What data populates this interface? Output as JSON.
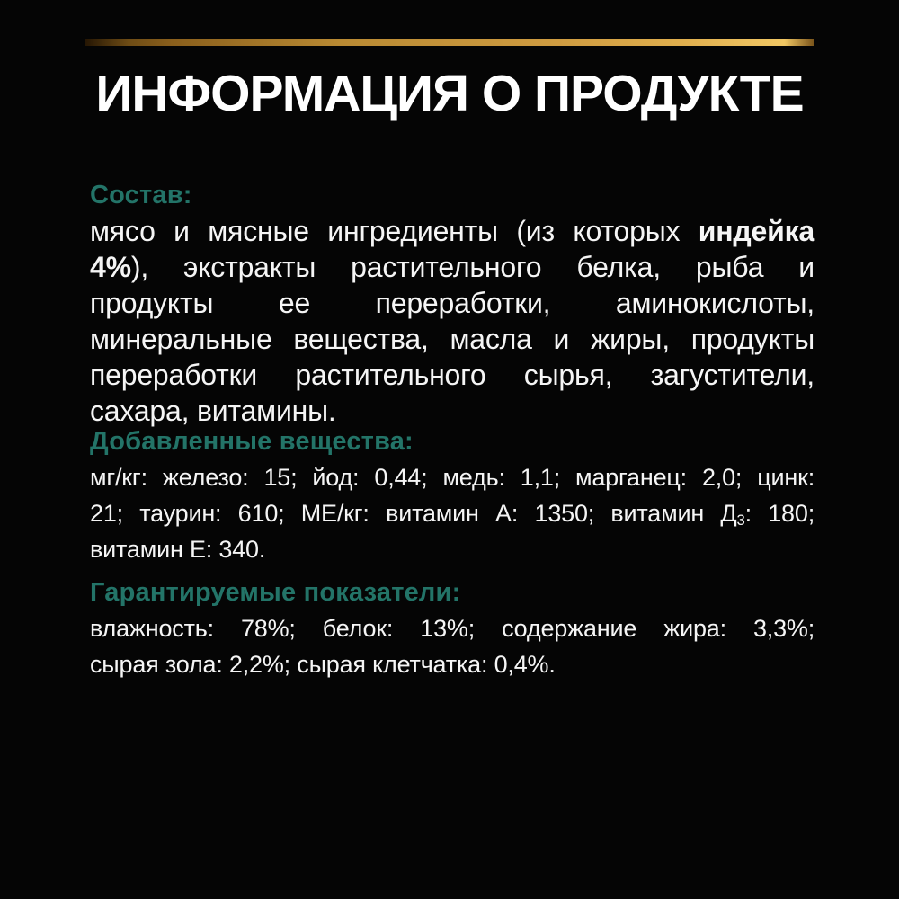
{
  "title": "ИНФОРМАЦИЯ О ПРОДУКТЕ",
  "colors": {
    "background": "#050505",
    "title": "#ffffff",
    "accent": "#237468",
    "body-text": "#f5f5f5",
    "gold-dark": "#241503",
    "gold-mid": "#b98a33",
    "gold-bright": "#ecc05e",
    "gold-tip": "#7b551b"
  },
  "sections": [
    {
      "header": "Состав:",
      "lines": [
        [
          {
            "t": "мясо и мясные ингредиенты (из которых "
          },
          {
            "t": "индейка",
            "b": true
          }
        ],
        [
          {
            "t": "4%",
            "b": true
          },
          {
            "t": "), экстракты растительного белка, рыба и"
          }
        ],
        [
          {
            "t": "продукты ее переработки, аминокислоты,"
          }
        ],
        [
          {
            "t": "минеральные вещества, масла и жиры, продукты"
          }
        ],
        [
          {
            "t": "переработки растительного сырья, загустители,"
          }
        ],
        [
          {
            "t": "сахара, витамины."
          }
        ]
      ]
    },
    {
      "header": "Добавленные вещества:",
      "lines": [
        [
          {
            "t": "мг/кг: железо: 15; йод: 0,44; медь: 1,1; марганец: 2,0; цинк:"
          }
        ],
        [
          {
            "t": "21; таурин: 610; МЕ/кг: витамин А: 1350; витамин Д"
          },
          {
            "t": "3",
            "sub": true
          },
          {
            "t": ": 180;"
          }
        ],
        [
          {
            "t": "витамин Е: 340."
          }
        ]
      ]
    },
    {
      "header": "Гарантируемые показатели:",
      "lines": [
        [
          {
            "t": "влажность: 78%; белок: 13%; содержание жира: 3,3%;"
          }
        ],
        [
          {
            "t": "сырая зола: 2,2%; сырая клетчатка: 0,4%."
          }
        ]
      ]
    }
  ]
}
